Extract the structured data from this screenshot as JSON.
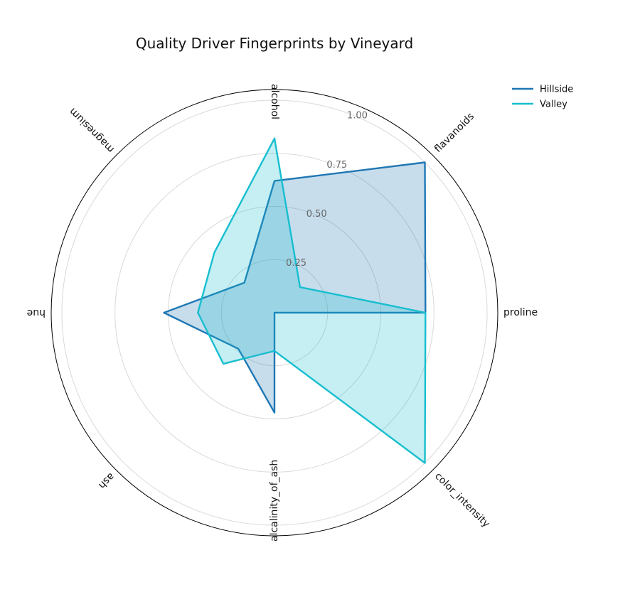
{
  "chart_data": {
    "type": "radar",
    "title": "Quality Driver Fingerprints by Vineyard",
    "axes": [
      "alcohol",
      "flavanoids",
      "proline",
      "color_intensity",
      "alcalinity_of_ash",
      "ash",
      "hue",
      "magnesium"
    ],
    "series": [
      {
        "name": "Hillside",
        "color": "#1f77b4",
        "fill": "#1f77b4",
        "values": [
          0.62,
          1.0,
          0.71,
          0.0,
          0.47,
          0.24,
          0.52,
          0.2
        ]
      },
      {
        "name": "Valley",
        "color": "#17becf",
        "fill": "#17becf",
        "values": [
          0.82,
          0.17,
          0.71,
          1.0,
          0.18,
          0.34,
          0.36,
          0.4
        ]
      }
    ],
    "radial_ticks": [
      0.25,
      0.5,
      0.75,
      1.0
    ],
    "radial_tick_labels": [
      "0.25",
      "0.50",
      "0.75",
      "1.00"
    ],
    "rlim": [
      0,
      1.05
    ],
    "grid": true,
    "legend": "top-right"
  }
}
